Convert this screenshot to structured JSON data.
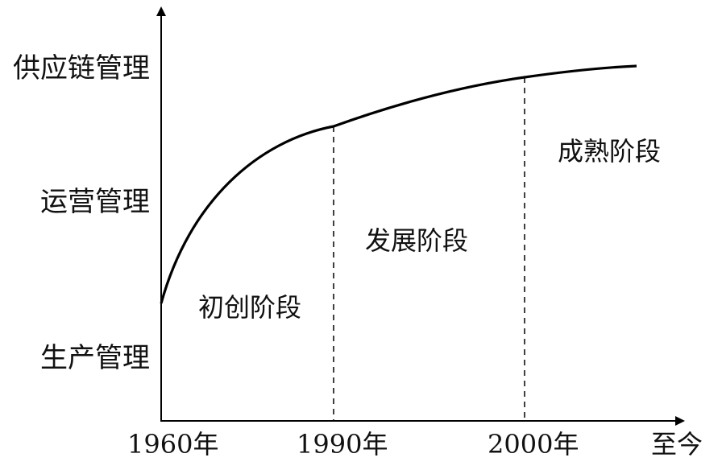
{
  "diagram": {
    "y_levels": [
      "供应链管理",
      "运营管理",
      "生产管理"
    ],
    "x_ticks": [
      "1960年",
      "1990年",
      "2000年",
      "至今"
    ],
    "stages": [
      "初创阶段",
      "发展阶段",
      "成熟阶段"
    ],
    "colors": {
      "line": "#000000",
      "text": "#111111",
      "background": "#ffffff"
    }
  }
}
